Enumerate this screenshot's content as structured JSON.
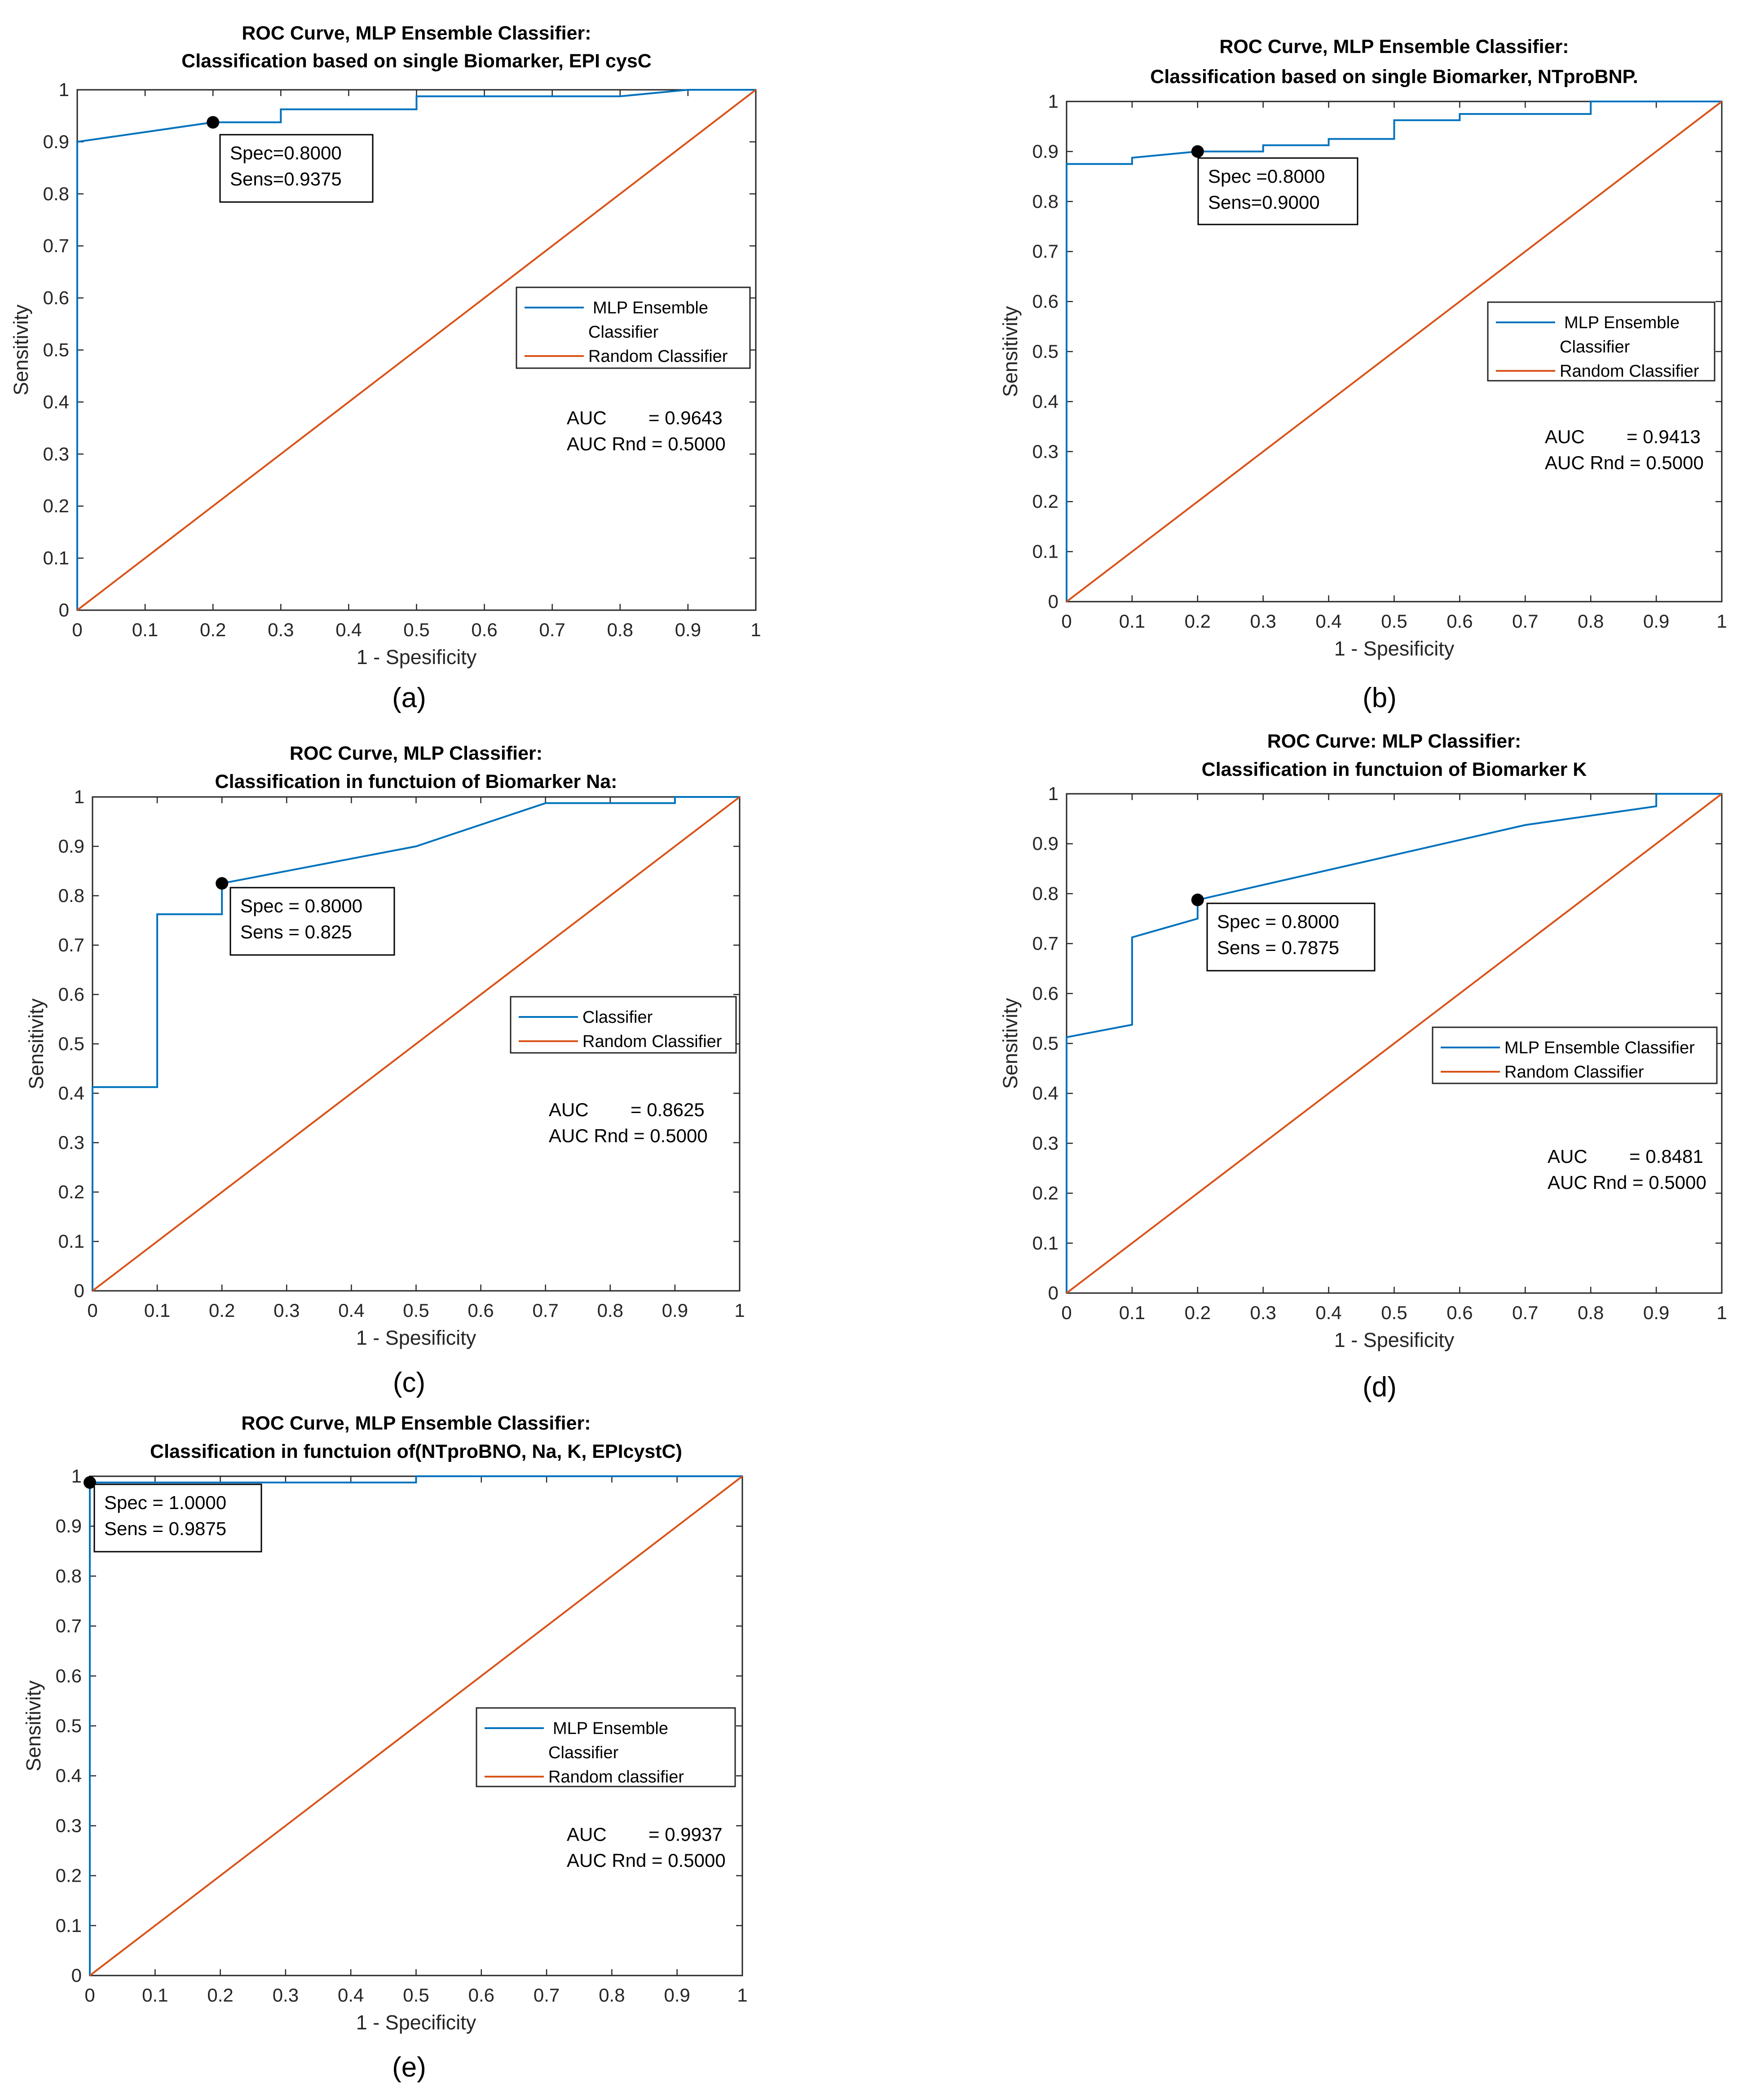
{
  "colors": {
    "roc": "#0072BD",
    "random": "#D95319",
    "axis": "#262626",
    "text": "#000000"
  },
  "chart_data": [
    {
      "type": "line",
      "panel_label": "(a)",
      "title": [
        "ROC Curve, MLP Ensemble Classifier:",
        "Classification based on single Biomarker, EPI cysC"
      ],
      "xlabel": "1 - Spesificity",
      "ylabel": "Sensitivity",
      "xlim": [
        0,
        1
      ],
      "ylim": [
        0,
        1
      ],
      "xticks": [
        "0",
        "0.1",
        "0.2",
        "0.3",
        "0.4",
        "0.5",
        "0.6",
        "0.7",
        "0.8",
        "0.9",
        "1"
      ],
      "yticks": [
        "0",
        "0.1",
        "0.2",
        "0.3",
        "0.4",
        "0.5",
        "0.6",
        "0.7",
        "0.8",
        "0.9",
        "1"
      ],
      "grid": false,
      "legend_position": "right",
      "series": [
        {
          "name": [
            "MLP Ensemble",
            "Classifier"
          ],
          "color": "#0072BD",
          "x": [
            0,
            0,
            0.2,
            0.3,
            0.3,
            0.5,
            0.5,
            0.8,
            0.9,
            1
          ],
          "y": [
            0,
            0.9,
            0.9375,
            0.9375,
            0.9625,
            0.9625,
            0.9875,
            0.9875,
            1,
            1
          ]
        },
        {
          "name": [
            "Random Classifier"
          ],
          "color": "#D95319",
          "x": [
            0,
            1
          ],
          "y": [
            0,
            1
          ]
        }
      ],
      "marker": {
        "x": 0.2,
        "y": 0.9375,
        "label": [
          "Spec=0.8000",
          "Sens=0.9375"
        ]
      },
      "auc": [
        "AUC        = 0.9643",
        "AUC Rnd = 0.5000"
      ]
    },
    {
      "type": "line",
      "panel_label": "(b)",
      "title": [
        "ROC Curve, MLP Ensemble Classifier:",
        "Classification based on single Biomarker, NTproBNP."
      ],
      "xlabel": "1 - Spesificity",
      "ylabel": "Sensitivity",
      "xlim": [
        0,
        1
      ],
      "ylim": [
        0,
        1
      ],
      "xticks": [
        "0",
        "0.1",
        "0.2",
        "0.3",
        "0.4",
        "0.5",
        "0.6",
        "0.7",
        "0.8",
        "0.9",
        "1"
      ],
      "yticks": [
        "0",
        "0.1",
        "0.2",
        "0.3",
        "0.4",
        "0.5",
        "0.6",
        "0.7",
        "0.8",
        "0.9",
        "1"
      ],
      "grid": false,
      "legend_position": "right",
      "series": [
        {
          "name": [
            "MLP Ensemble",
            "Classifier"
          ],
          "color": "#0072BD",
          "x": [
            0,
            0,
            0.1,
            0.1,
            0.2,
            0.3,
            0.3,
            0.4,
            0.4,
            0.5,
            0.5,
            0.6,
            0.6,
            0.8,
            0.8,
            1
          ],
          "y": [
            0,
            0.875,
            0.875,
            0.8875,
            0.9,
            0.9,
            0.9125,
            0.9125,
            0.925,
            0.925,
            0.9625,
            0.9625,
            0.975,
            0.975,
            1,
            1
          ]
        },
        {
          "name": [
            "Random Classifier"
          ],
          "color": "#D95319",
          "x": [
            0,
            1
          ],
          "y": [
            0,
            1
          ]
        }
      ],
      "marker": {
        "x": 0.2,
        "y": 0.9,
        "label": [
          "Spec =0.8000",
          "Sens=0.9000"
        ]
      },
      "auc": [
        "AUC        = 0.9413",
        "AUC Rnd = 0.5000"
      ]
    },
    {
      "type": "line",
      "panel_label": "(c)",
      "title": [
        "ROC Curve, MLP Classifier:",
        "Classification in functuion of Biomarker Na:"
      ],
      "xlabel": "1 - Spesificity",
      "ylabel": "Sensitivity",
      "xlim": [
        0,
        1
      ],
      "ylim": [
        0,
        1
      ],
      "xticks": [
        "0",
        "0.1",
        "0.2",
        "0.3",
        "0.4",
        "0.5",
        "0.6",
        "0.7",
        "0.8",
        "0.9",
        "1"
      ],
      "yticks": [
        "0",
        "0.1",
        "0.2",
        "0.3",
        "0.4",
        "0.5",
        "0.6",
        "0.7",
        "0.8",
        "0.9",
        "1"
      ],
      "grid": false,
      "legend_position": "right",
      "series": [
        {
          "name": [
            "Classifier"
          ],
          "color": "#0072BD",
          "x": [
            0,
            0,
            0.1,
            0.1,
            0.2,
            0.2,
            0.5,
            0.7,
            0.9,
            0.9,
            1
          ],
          "y": [
            0,
            0.4125,
            0.4125,
            0.7625,
            0.7625,
            0.825,
            0.9,
            0.9875,
            0.9875,
            1,
            1
          ]
        },
        {
          "name": [
            "Random Classifier"
          ],
          "color": "#D95319",
          "x": [
            0,
            1
          ],
          "y": [
            0,
            1
          ]
        }
      ],
      "marker": {
        "x": 0.2,
        "y": 0.825,
        "label": [
          "Spec = 0.8000",
          "Sens = 0.825"
        ]
      },
      "auc": [
        "AUC        = 0.8625",
        "AUC Rnd = 0.5000"
      ]
    },
    {
      "type": "line",
      "panel_label": "(d)",
      "title": [
        "ROC Curve: MLP Classifier:",
        "Classification in functuion of Biomarker K"
      ],
      "xlabel": "1 - Spesificity",
      "ylabel": "Sensitivity",
      "xlim": [
        0,
        1
      ],
      "ylim": [
        0,
        1
      ],
      "xticks": [
        "0",
        "0.1",
        "0.2",
        "0.3",
        "0.4",
        "0.5",
        "0.6",
        "0.7",
        "0.8",
        "0.9",
        "1"
      ],
      "yticks": [
        "0",
        "0.1",
        "0.2",
        "0.3",
        "0.4",
        "0.5",
        "0.6",
        "0.7",
        "0.8",
        "0.9",
        "1"
      ],
      "grid": false,
      "legend_position": "right",
      "series": [
        {
          "name": [
            "MLP Ensemble Classifier"
          ],
          "color": "#0072BD",
          "x": [
            0,
            0,
            0.1,
            0.1,
            0.2,
            0.2,
            0.7,
            0.9,
            0.9,
            1
          ],
          "y": [
            0,
            0.5125,
            0.5375,
            0.7125,
            0.75,
            0.7875,
            0.9375,
            0.975,
            1,
            1
          ]
        },
        {
          "name": [
            "Random Classifier"
          ],
          "color": "#D95319",
          "x": [
            0,
            1
          ],
          "y": [
            0,
            1
          ]
        }
      ],
      "marker": {
        "x": 0.2,
        "y": 0.7875,
        "label": [
          "Spec = 0.8000",
          "Sens = 0.7875"
        ]
      },
      "auc": [
        "AUC        = 0.8481",
        "AUC Rnd = 0.5000"
      ]
    },
    {
      "type": "line",
      "panel_label": "(e)",
      "title": [
        "ROC Curve, MLP Ensemble Classifier:",
        "Classification in functuion of(NTproBNO, Na, K, EPIcystC)"
      ],
      "xlabel": "1 - Specificity",
      "ylabel": "Sensitivity",
      "xlim": [
        0,
        1
      ],
      "ylim": [
        0,
        1
      ],
      "xticks": [
        "0",
        "0.1",
        "0.2",
        "0.3",
        "0.4",
        "0.5",
        "0.6",
        "0.7",
        "0.8",
        "0.9",
        "1"
      ],
      "yticks": [
        "0",
        "0.1",
        "0.2",
        "0.3",
        "0.4",
        "0.5",
        "0.6",
        "0.7",
        "0.8",
        "0.9",
        "1"
      ],
      "grid": false,
      "legend_position": "right",
      "series": [
        {
          "name": [
            "MLP Ensemble",
            "Classifier"
          ],
          "color": "#0072BD",
          "x": [
            0,
            0,
            0.5,
            0.5,
            1
          ],
          "y": [
            0,
            0.9875,
            0.9875,
            1,
            1
          ]
        },
        {
          "name": [
            "Random classifier"
          ],
          "color": "#D95319",
          "x": [
            0,
            1
          ],
          "y": [
            0,
            1
          ]
        }
      ],
      "marker": {
        "x": 0.0,
        "y": 0.9875,
        "label": [
          "Spec = 1.0000",
          "Sens = 0.9875"
        ]
      },
      "auc": [
        "AUC        = 0.9937",
        "AUC Rnd = 0.5000"
      ]
    }
  ]
}
